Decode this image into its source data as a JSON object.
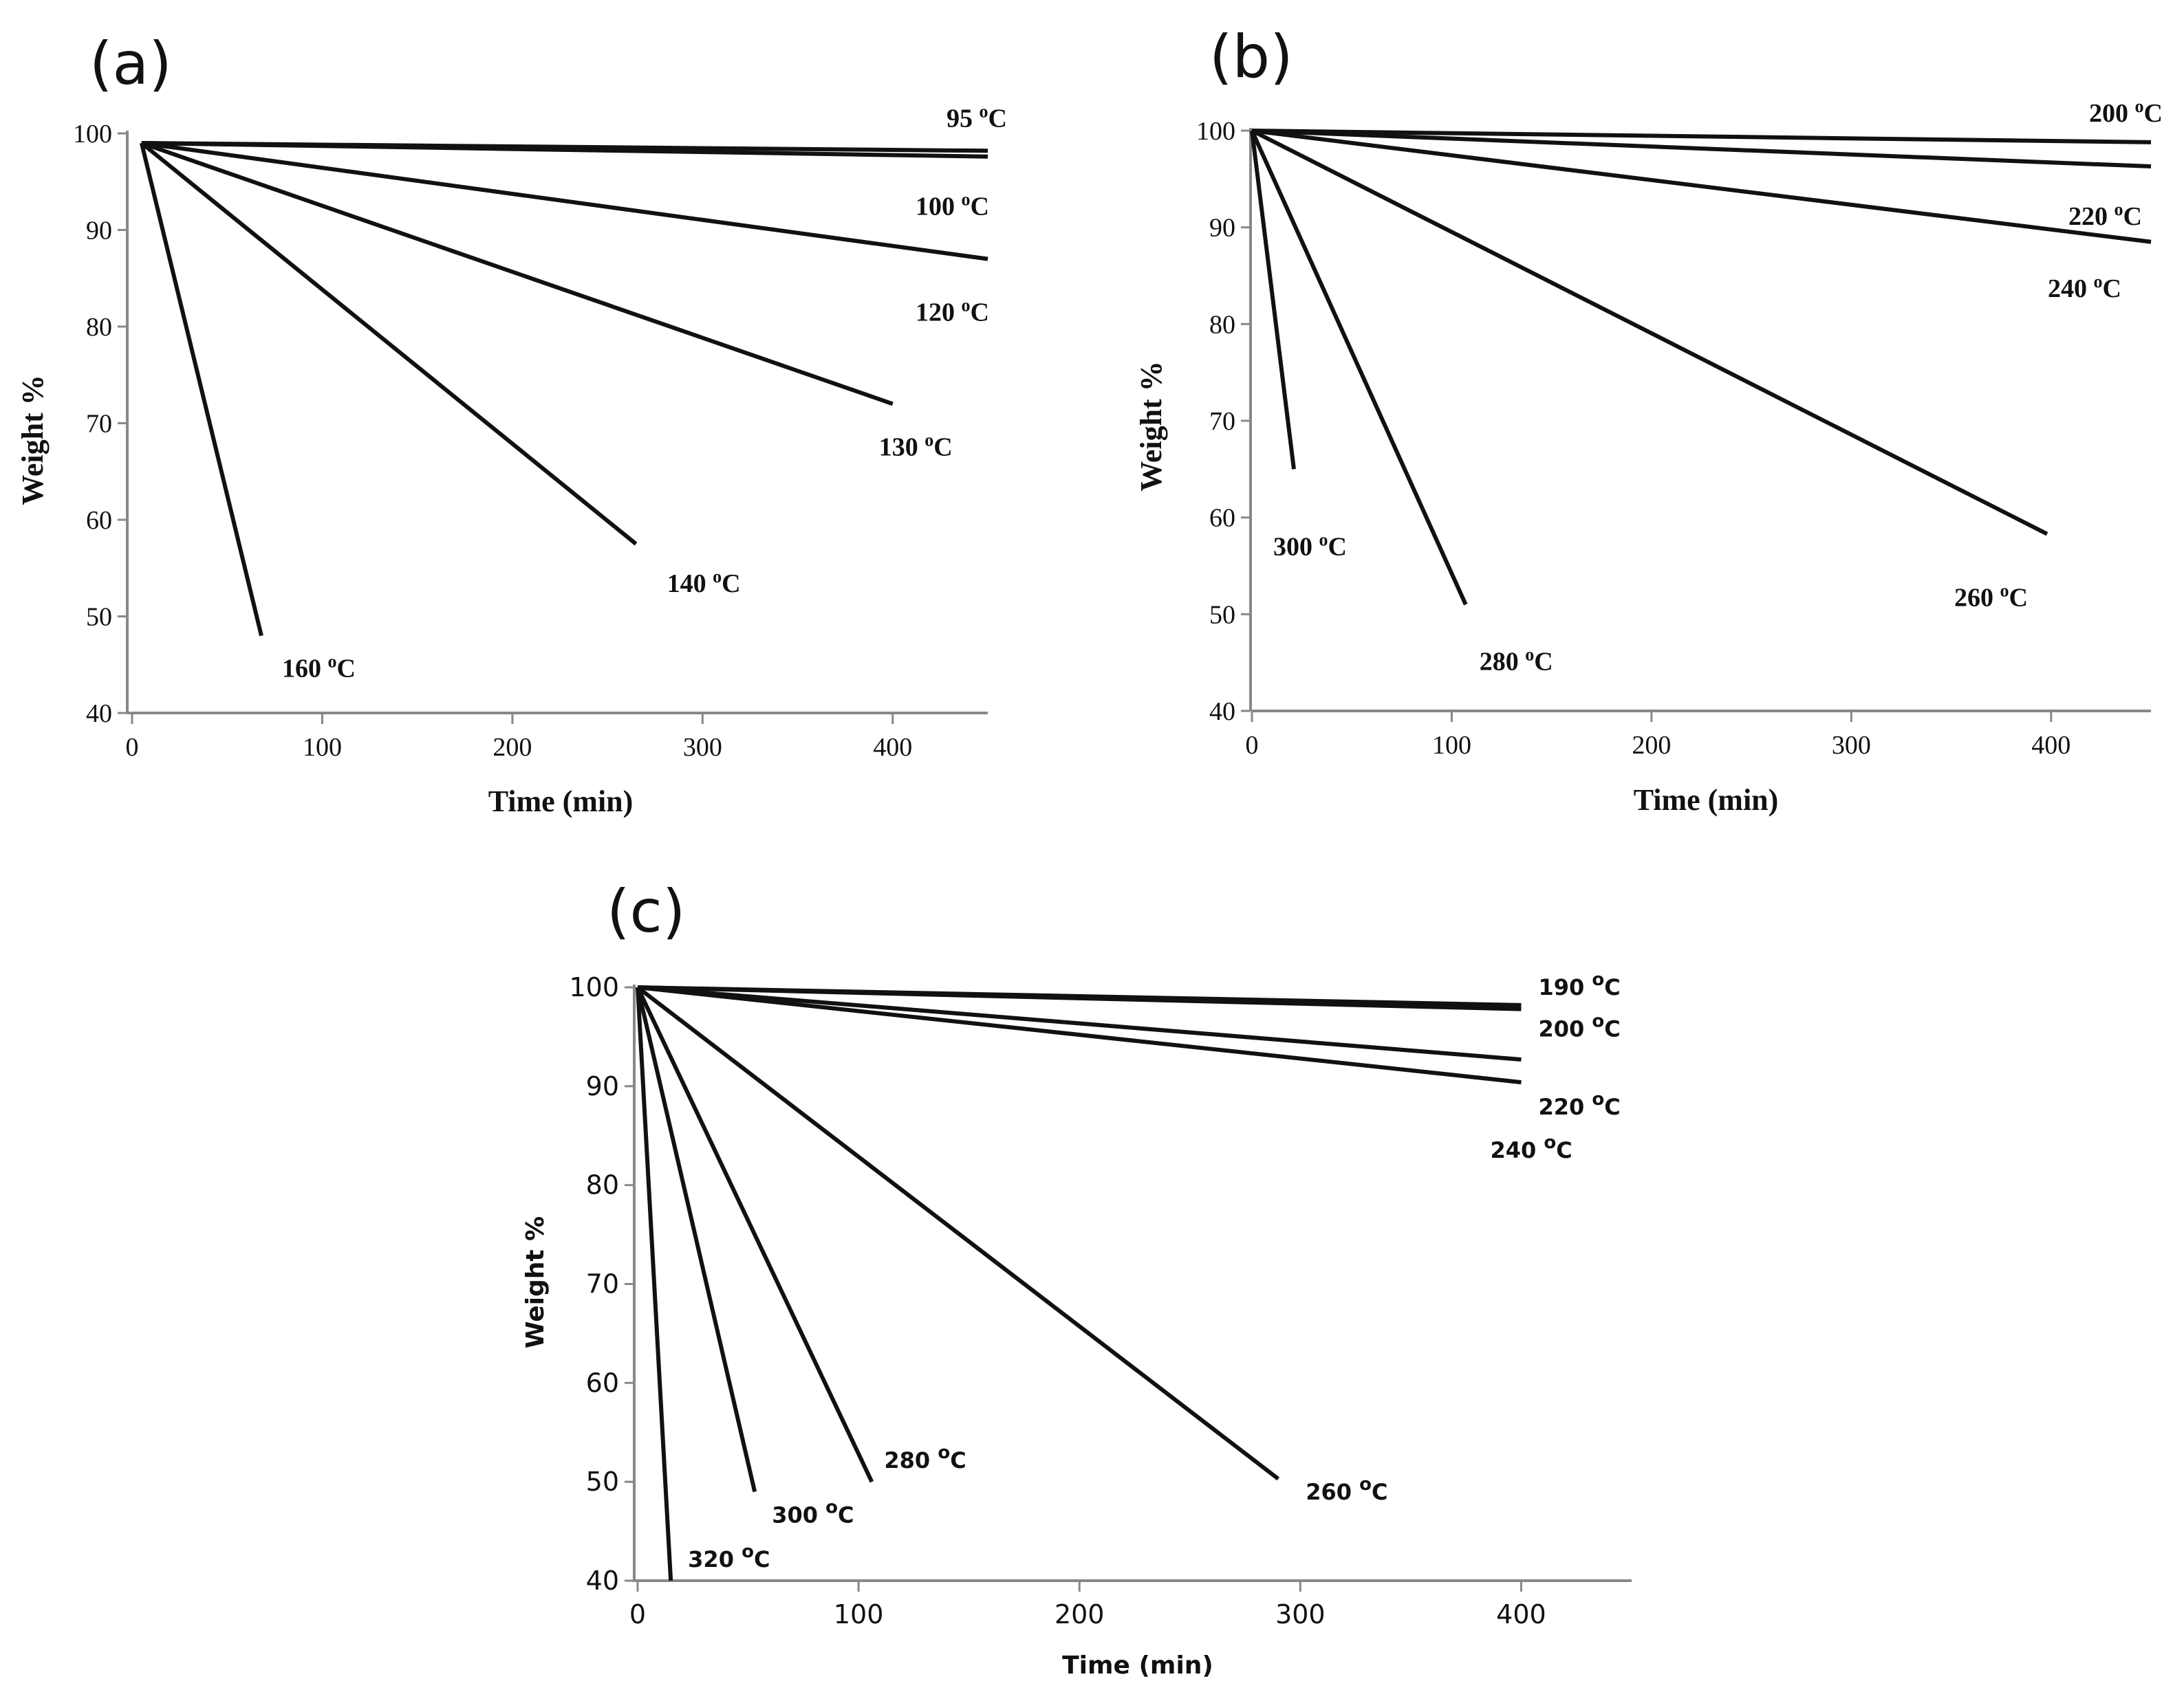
{
  "chart_data": [
    {
      "panel": "(a)",
      "type": "line",
      "title": "",
      "xlabel": "Time (min)",
      "ylabel": "Weight %",
      "xlim": [
        0,
        450
      ],
      "ylim": [
        40,
        100
      ],
      "xticks": [
        0,
        100,
        200,
        300,
        400
      ],
      "yticks": [
        40,
        50,
        60,
        70,
        80,
        90,
        100
      ],
      "series": [
        {
          "name": "95 °C",
          "temp": "95",
          "x": [
            5,
            450
          ],
          "y": [
            99,
            98.2
          ]
        },
        {
          "name": "100 °C",
          "temp": "100",
          "x": [
            5,
            450
          ],
          "y": [
            99,
            97.6
          ]
        },
        {
          "name": "120 °C",
          "temp": "120",
          "x": [
            5,
            450
          ],
          "y": [
            99,
            87
          ]
        },
        {
          "name": "130 °C",
          "temp": "130",
          "x": [
            5,
            400
          ],
          "y": [
            99,
            72
          ]
        },
        {
          "name": "140 °C",
          "temp": "140",
          "x": [
            5,
            265
          ],
          "y": [
            99,
            57.5
          ]
        },
        {
          "name": "160 °C",
          "temp": "160",
          "x": [
            5,
            68
          ],
          "y": [
            99,
            48
          ]
        }
      ]
    },
    {
      "panel": "(b)",
      "type": "line",
      "title": "",
      "xlabel": "Time (min)",
      "ylabel": "Weight %",
      "xlim": [
        0,
        450
      ],
      "ylim": [
        40,
        100
      ],
      "xticks": [
        0,
        100,
        200,
        300,
        400
      ],
      "yticks": [
        40,
        50,
        60,
        70,
        80,
        90,
        100
      ],
      "series": [
        {
          "name": "200 °C",
          "temp": "200",
          "x": [
            0,
            450
          ],
          "y": [
            100,
            98.8
          ]
        },
        {
          "name": "220 °C",
          "temp": "220",
          "x": [
            0,
            450
          ],
          "y": [
            100,
            96.3
          ]
        },
        {
          "name": "240 °C",
          "temp": "240",
          "x": [
            0,
            450
          ],
          "y": [
            100,
            88.5
          ]
        },
        {
          "name": "260 °C",
          "temp": "260",
          "x": [
            0,
            398
          ],
          "y": [
            100,
            58.3
          ]
        },
        {
          "name": "280 °C",
          "temp": "280",
          "x": [
            0,
            107
          ],
          "y": [
            100,
            51
          ]
        },
        {
          "name": "300 °C",
          "temp": "300",
          "x": [
            0,
            21
          ],
          "y": [
            100,
            65
          ]
        }
      ]
    },
    {
      "panel": "(c)",
      "type": "line",
      "title": "",
      "xlabel": "Time (min)",
      "ylabel": "Weight %",
      "xlim": [
        0,
        450
      ],
      "ylim": [
        40,
        100
      ],
      "xticks": [
        0,
        100,
        200,
        300,
        400
      ],
      "yticks": [
        40,
        50,
        60,
        70,
        80,
        90,
        100
      ],
      "series": [
        {
          "name": "190 °C",
          "temp": "190",
          "x": [
            0,
            400
          ],
          "y": [
            100,
            98.2
          ]
        },
        {
          "name": "200 °C",
          "temp": "200",
          "x": [
            0,
            400
          ],
          "y": [
            100,
            97.8
          ]
        },
        {
          "name": "220 °C",
          "temp": "220",
          "x": [
            0,
            400
          ],
          "y": [
            100,
            92.7
          ]
        },
        {
          "name": "240 °C",
          "temp": "240",
          "x": [
            0,
            400
          ],
          "y": [
            100,
            90.4
          ]
        },
        {
          "name": "260 °C",
          "temp": "260",
          "x": [
            0,
            290
          ],
          "y": [
            100,
            50.3
          ]
        },
        {
          "name": "280 °C",
          "temp": "280",
          "x": [
            0,
            106
          ],
          "y": [
            100,
            50
          ]
        },
        {
          "name": "300 °C",
          "temp": "300",
          "x": [
            0,
            53
          ],
          "y": [
            100,
            49
          ]
        },
        {
          "name": "320 °C",
          "temp": "320",
          "x": [
            0,
            15
          ],
          "y": [
            100,
            40
          ]
        }
      ]
    }
  ]
}
